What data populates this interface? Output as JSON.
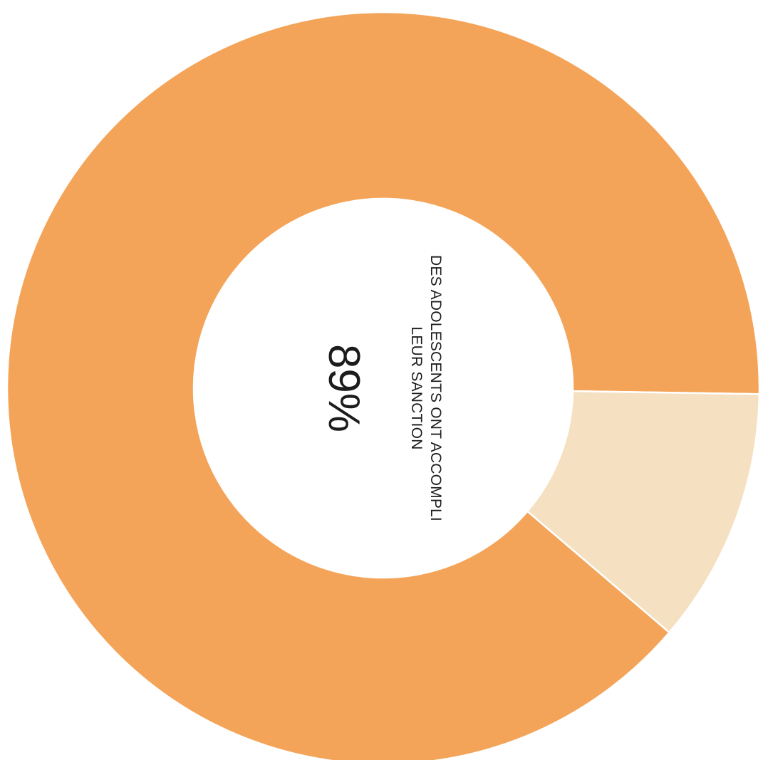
{
  "chart_data": {
    "type": "pie",
    "style": "donut",
    "values": [
      89,
      11
    ],
    "colors": [
      "#f4a458",
      "#f5e0c2"
    ],
    "center_value": "89%",
    "center_caption": [
      "DES ADOLESCENTS ONT ACCOMPLI",
      "LEUR SANCTION"
    ],
    "rotation": "clockwise 90°",
    "title": "",
    "legend": "none"
  }
}
